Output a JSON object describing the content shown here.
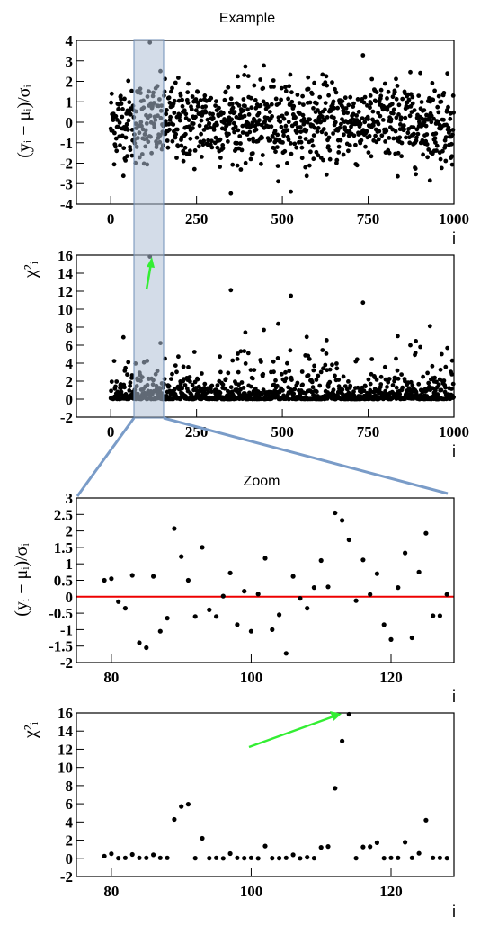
{
  "chart_data": [
    {
      "id": "example_residuals",
      "type": "scatter",
      "title": "Example",
      "xlabel": "i",
      "ylabel": "(yᵢ − μᵢ)/σᵢ",
      "xlim": [
        -100,
        1000
      ],
      "ylim": [
        -4,
        4
      ],
      "xticks": [
        0,
        250,
        500,
        750,
        1000
      ],
      "yticks": [
        -4,
        -3,
        -2,
        -1,
        0,
        1,
        2,
        3,
        4
      ],
      "grid": false,
      "highlight_band": [
        70,
        155
      ],
      "series": [
        {
          "note": "approximately standard normal residuals, ~1000 points",
          "x": [],
          "y": []
        }
      ]
    },
    {
      "id": "example_chi2",
      "type": "scatter",
      "title": "",
      "xlabel": "i",
      "ylabel": "χ²ᵢ",
      "xlim": [
        -100,
        1000
      ],
      "ylim": [
        -2,
        16
      ],
      "xticks": [
        0,
        250,
        500,
        750,
        1000
      ],
      "yticks": [
        -2,
        0,
        2,
        4,
        6,
        8,
        10,
        12,
        14,
        16
      ],
      "grid": false,
      "highlight_band": [
        70,
        155
      ],
      "annotations": [
        {
          "type": "arrow",
          "color": "#33ee33",
          "from": [
            100,
            12
          ],
          "to": [
            115,
            15.8
          ]
        }
      ],
      "series": [
        {
          "x": [],
          "y": []
        }
      ]
    },
    {
      "id": "zoom_residuals",
      "type": "scatter",
      "title": "Zoom",
      "xlabel": "i",
      "ylabel": "(yᵢ − μᵢ)/σᵢ",
      "xlim": [
        75,
        129
      ],
      "ylim": [
        -2,
        3
      ],
      "xticks": [
        80,
        100,
        120
      ],
      "yticks": [
        -2,
        -1.5,
        -1,
        -0.5,
        0,
        0.5,
        1,
        1.5,
        2,
        2.5,
        3
      ],
      "grid": false,
      "reference_line": {
        "y": 0,
        "color": "#ee0000"
      },
      "series": [
        {
          "x": [
            79,
            80,
            81,
            82,
            83,
            84,
            85,
            86,
            87,
            88,
            89,
            90,
            91,
            92,
            93,
            94,
            95,
            96,
            97,
            98,
            99,
            100,
            101,
            102,
            103,
            104,
            105,
            106,
            107,
            108,
            109,
            110,
            111,
            112,
            113,
            114,
            115,
            116,
            117,
            118,
            119,
            120,
            121,
            122,
            123,
            124,
            125,
            126,
            127,
            128
          ],
          "y": [
            0.5,
            0.55,
            -0.15,
            -0.35,
            0.65,
            -1.4,
            -1.55,
            0.62,
            -1.05,
            -0.65,
            2.07,
            1.22,
            0.5,
            -0.6,
            1.5,
            -0.4,
            -0.6,
            0.02,
            0.72,
            -0.85,
            0.17,
            -1.05,
            0.08,
            1.17,
            -1.0,
            -0.55,
            -1.72,
            0.62,
            -0.05,
            -0.35,
            0.28,
            1.1,
            0.3,
            2.55,
            2.32,
            1.73,
            -0.12,
            1.12,
            0.07,
            0.7,
            -0.85,
            -1.3,
            0.28,
            1.33,
            -1.25,
            0.75,
            1.93,
            -0.58,
            -0.58,
            0.07
          ]
        }
      ]
    },
    {
      "id": "zoom_chi2",
      "type": "scatter",
      "title": "",
      "xlabel": "i",
      "ylabel": "χ²ᵢ",
      "xlim": [
        75,
        129
      ],
      "ylim": [
        -2,
        16
      ],
      "xticks": [
        80,
        100,
        120
      ],
      "yticks": [
        -2,
        0,
        2,
        4,
        6,
        8,
        10,
        12,
        14,
        16
      ],
      "grid": false,
      "annotations": [
        {
          "type": "arrow",
          "color": "#33ee33",
          "from": [
            100,
            12
          ],
          "to": [
            113.5,
            15.7
          ]
        }
      ],
      "series": [
        {
          "x": [
            79,
            80,
            81,
            82,
            83,
            84,
            85,
            86,
            87,
            88,
            89,
            90,
            91,
            92,
            93,
            94,
            95,
            96,
            97,
            98,
            99,
            100,
            101,
            102,
            103,
            104,
            105,
            106,
            107,
            108,
            109,
            110,
            111,
            112,
            113,
            114,
            115,
            116,
            117,
            118,
            119,
            120,
            121,
            122,
            123,
            124,
            125,
            126,
            127,
            128
          ],
          "y": [
            0.25,
            0.5,
            0.02,
            0.05,
            0.42,
            0.05,
            0.05,
            0.38,
            0.05,
            0.05,
            4.28,
            5.7,
            5.95,
            0.02,
            2.2,
            0.02,
            0.05,
            0.0,
            0.52,
            0.05,
            0.02,
            0.05,
            0.0,
            1.35,
            0.02,
            0.02,
            0.05,
            0.38,
            0.0,
            0.12,
            0.02,
            1.2,
            1.3,
            7.7,
            12.9,
            15.85,
            0.02,
            1.25,
            1.28,
            1.72,
            0.02,
            0.05,
            0.05,
            1.77,
            0.05,
            0.55,
            4.2,
            0.05,
            0.05,
            0.02
          ]
        }
      ]
    }
  ],
  "icons": {
    "selection-band-color": "#aebfd6",
    "connector-line-color": "#7a9cc8",
    "arrow-color": "#33ee33",
    "zero-line-color": "#ee0000"
  }
}
